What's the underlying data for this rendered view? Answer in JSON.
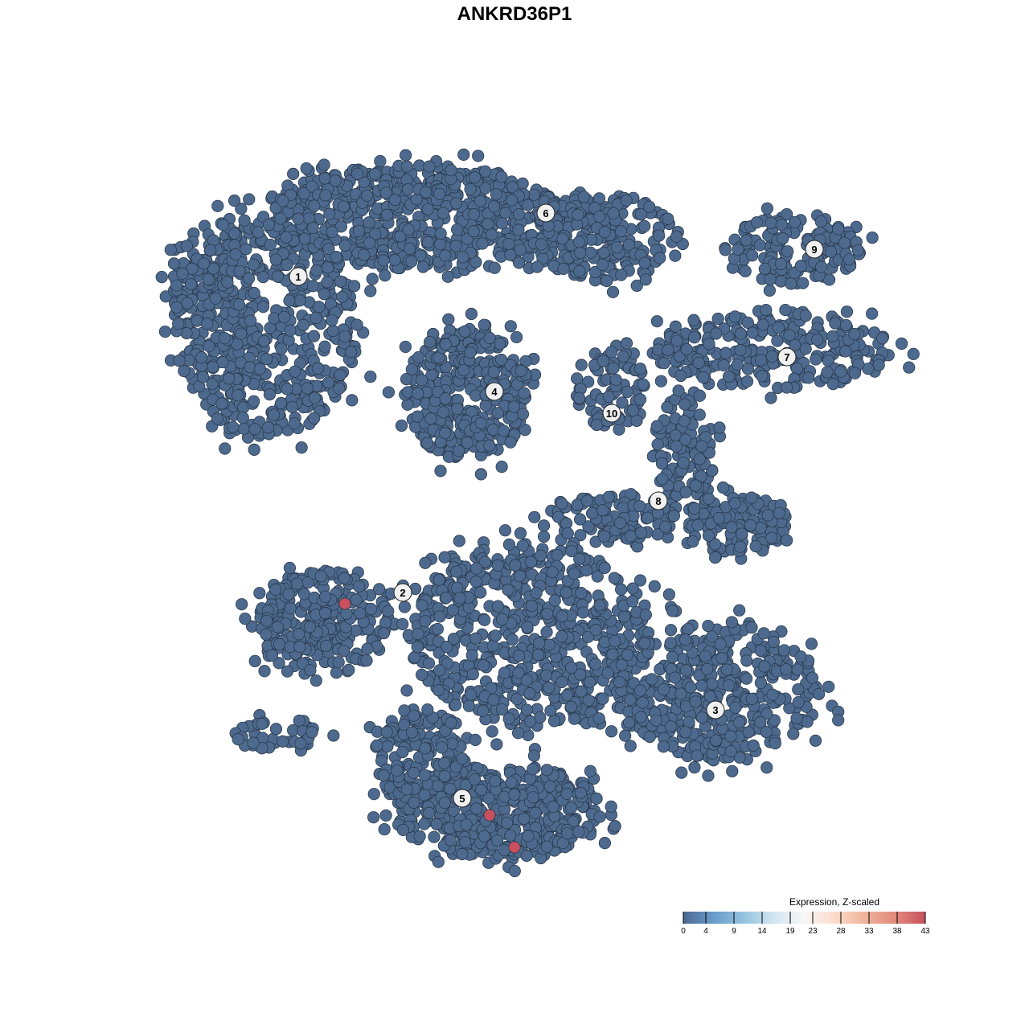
{
  "chart_data": {
    "type": "scatter",
    "title": "ANKRD36P1",
    "xlabel": "",
    "ylabel": "",
    "grid": false,
    "axes_visible": false,
    "point_color_default": "#4d6a8e",
    "point_outline": "#2b3a4d",
    "clusters": [
      "1",
      "2",
      "3",
      "4",
      "5",
      "6",
      "7",
      "8",
      "9",
      "10"
    ],
    "high_expression_points": [
      {
        "cluster": "2",
        "expression": 43
      },
      {
        "cluster": "5",
        "expression": 43
      },
      {
        "cluster": "5",
        "expression": 43
      }
    ],
    "colorbar": {
      "title": "Expression, Z-scaled",
      "ticks": [
        0,
        4,
        9,
        14,
        19,
        23,
        28,
        33,
        38,
        43
      ],
      "range": [
        0,
        43
      ],
      "colors": [
        "#4a6890",
        "#6a9ccb",
        "#93c3de",
        "#d4e6f0",
        "#f7f7f7",
        "#fbdccb",
        "#f0b39a",
        "#e28a7c",
        "#c8505f"
      ],
      "placement": "bottom-right"
    }
  }
}
